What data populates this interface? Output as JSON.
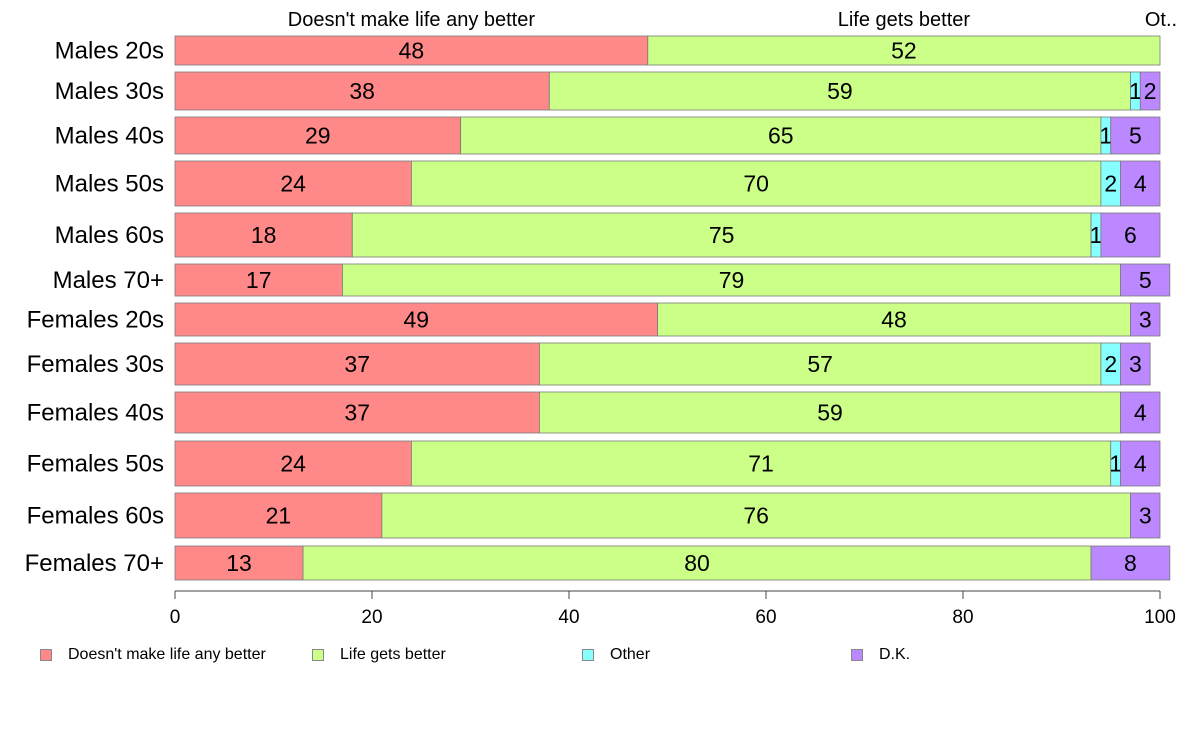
{
  "chart_data": {
    "type": "bar",
    "orientation": "horizontal",
    "stacked": true,
    "categories": [
      "Males 20s",
      "Males 30s",
      "Males 40s",
      "Males 50s",
      "Males 60s",
      "Males 70+",
      "Females 20s",
      "Females 30s",
      "Females 40s",
      "Females 50s",
      "Females 60s",
      "Females 70+"
    ],
    "series": [
      {
        "name": "Doesn't make life any better",
        "color": "#FF8888",
        "values": [
          48,
          38,
          29,
          24,
          18,
          17,
          49,
          37,
          37,
          24,
          21,
          13
        ]
      },
      {
        "name": "Life gets better",
        "color": "#CCFF88",
        "values": [
          52,
          59,
          65,
          70,
          75,
          79,
          48,
          57,
          59,
          71,
          76,
          80
        ]
      },
      {
        "name": "Other",
        "color": "#88FFFF",
        "values": [
          0,
          1,
          1,
          2,
          1,
          0,
          0,
          2,
          0,
          1,
          0,
          0
        ]
      },
      {
        "name": "D.K.",
        "color": "#BB88FF",
        "values": [
          0,
          2,
          5,
          4,
          6,
          5,
          3,
          3,
          4,
          4,
          3,
          8
        ]
      }
    ],
    "top_labels": [
      "Doesn't make life any better",
      "Life gets better",
      "Ot.."
    ],
    "xlim": [
      0,
      100
    ],
    "xticks": [
      0,
      20,
      40,
      60,
      80,
      100
    ],
    "grid": false,
    "legend_position": "bottom",
    "xlabel": "",
    "ylabel": "",
    "title": ""
  }
}
